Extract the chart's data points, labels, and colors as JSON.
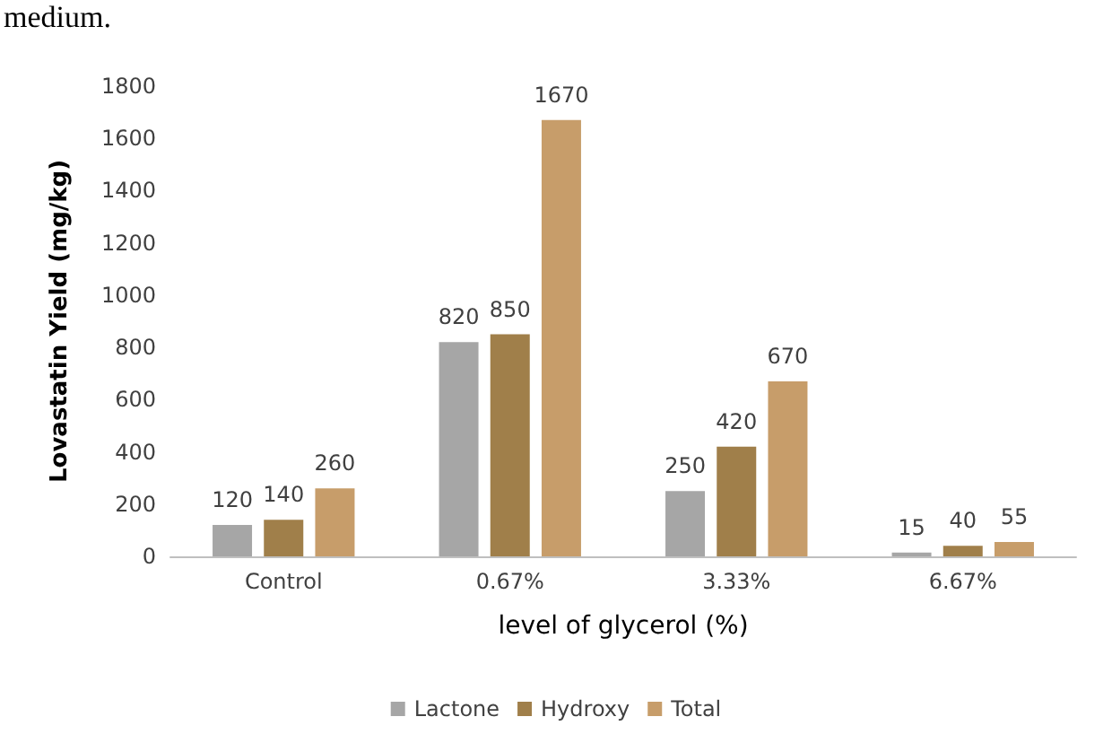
{
  "chart_data": {
    "type": "bar",
    "annotations": [
      "medium."
    ],
    "xlabel": "level of glycerol (%)",
    "ylabel": "Lovastatin Yield (mg/kg)",
    "categories": [
      "Control",
      "0.67%",
      "3.33%",
      "6.67%"
    ],
    "series": [
      {
        "name": "Lactone",
        "color": "#a6a6a6",
        "values": [
          120,
          820,
          250,
          15
        ]
      },
      {
        "name": "Hydroxy",
        "color": "#a07f4a",
        "values": [
          140,
          850,
          420,
          40
        ]
      },
      {
        "name": "Total",
        "color": "#c79d6a",
        "values": [
          260,
          1670,
          670,
          55
        ]
      }
    ],
    "ylim": [
      0,
      1800
    ],
    "yticks": [
      0,
      200,
      400,
      600,
      800,
      1000,
      1200,
      1400,
      1600,
      1800
    ],
    "grid": false,
    "legend": "bottom",
    "data_labels": true
  }
}
